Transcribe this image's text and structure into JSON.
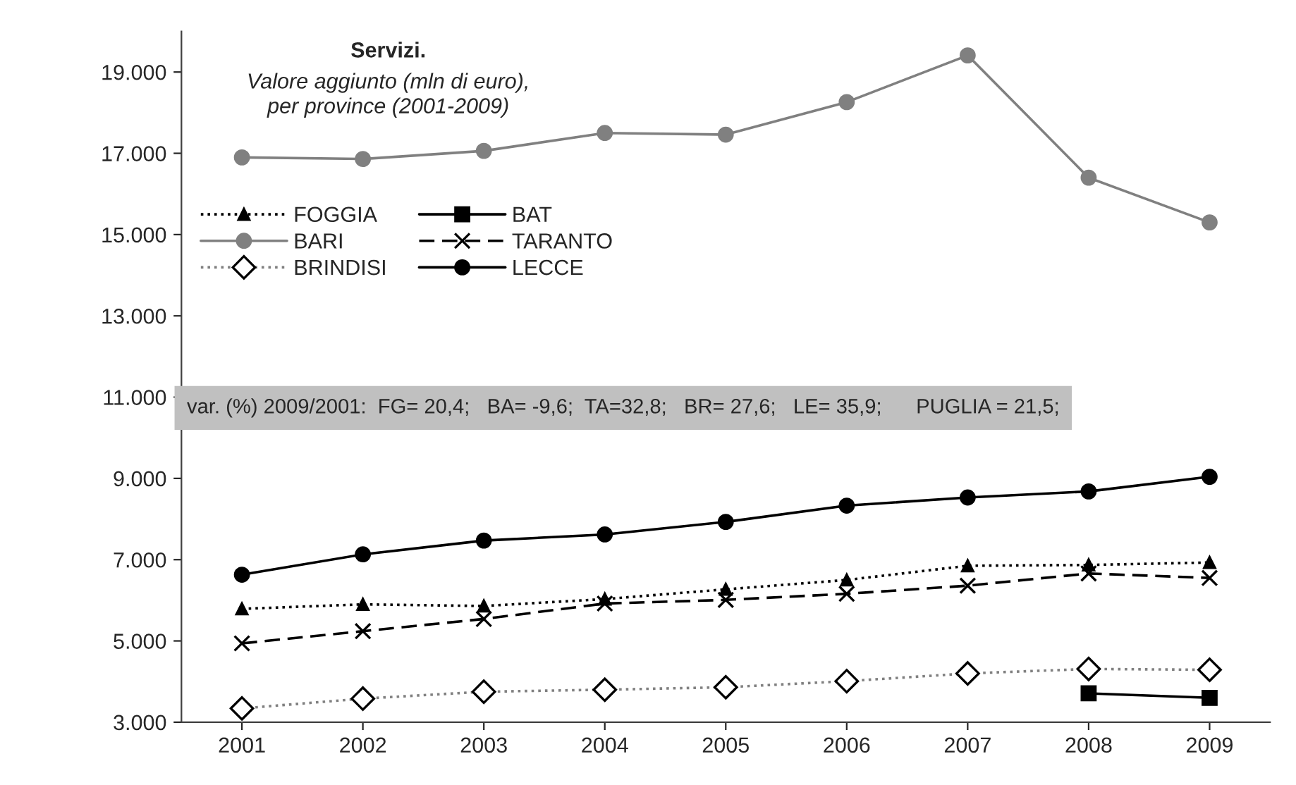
{
  "chart_data": {
    "type": "line",
    "title": "Servizi.",
    "subtitle": "Valore aggiunto (mln di euro),\nper province (2001-2009)",
    "categories": [
      "2001",
      "2002",
      "2003",
      "2004",
      "2005",
      "2006",
      "2007",
      "2008",
      "2009"
    ],
    "series": [
      {
        "name": "FOGGIA",
        "color": "#000000",
        "marker": "triangle",
        "line_style": "dotted",
        "values": [
          5790,
          5900,
          5860,
          6030,
          6270,
          6500,
          6850,
          6870,
          6930
        ]
      },
      {
        "name": "BARI",
        "color": "#808080",
        "marker": "circle",
        "line_style": "solid",
        "values": [
          16900,
          16860,
          17060,
          17500,
          17460,
          18260,
          19410,
          16400,
          15300
        ]
      },
      {
        "name": "BRINDISI",
        "color": "#808080",
        "marker": "diamond",
        "line_style": "dotted",
        "values": [
          3340,
          3580,
          3750,
          3800,
          3860,
          4010,
          4200,
          4310,
          4290
        ]
      },
      {
        "name": "BAT",
        "color": "#000000",
        "marker": "square",
        "line_style": "solid",
        "values": [
          null,
          null,
          null,
          null,
          null,
          null,
          null,
          3710,
          3600
        ]
      },
      {
        "name": "TARANTO",
        "color": "#000000",
        "marker": "cross",
        "line_style": "dashed",
        "values": [
          4940,
          5240,
          5540,
          5920,
          6010,
          6160,
          6360,
          6660,
          6550
        ]
      },
      {
        "name": "LECCE",
        "color": "#000000",
        "marker": "circle",
        "line_style": "solid",
        "values": [
          6630,
          7130,
          7470,
          7620,
          7930,
          8330,
          8530,
          8680,
          9040
        ]
      }
    ],
    "ylim": [
      3000,
      20000
    ],
    "yticks": [
      {
        "value": 3000,
        "label": "3.000"
      },
      {
        "value": 5000,
        "label": "5.000"
      },
      {
        "value": 7000,
        "label": "7.000"
      },
      {
        "value": 9000,
        "label": "9.000"
      },
      {
        "value": 11000,
        "label": "11.000"
      },
      {
        "value": 13000,
        "label": "13.000"
      },
      {
        "value": 15000,
        "label": "15.000"
      },
      {
        "value": 17000,
        "label": "17.000"
      },
      {
        "value": 19000,
        "label": "19.000"
      }
    ],
    "annotations": [
      "var. (%) 2009/2001:  FG= 20,4;   BA= -9,6;  TA=32,8;   BR= 27,6;   LE= 35,9;      PUGLIA = 21,5;"
    ],
    "grid": false,
    "legend": "left"
  }
}
